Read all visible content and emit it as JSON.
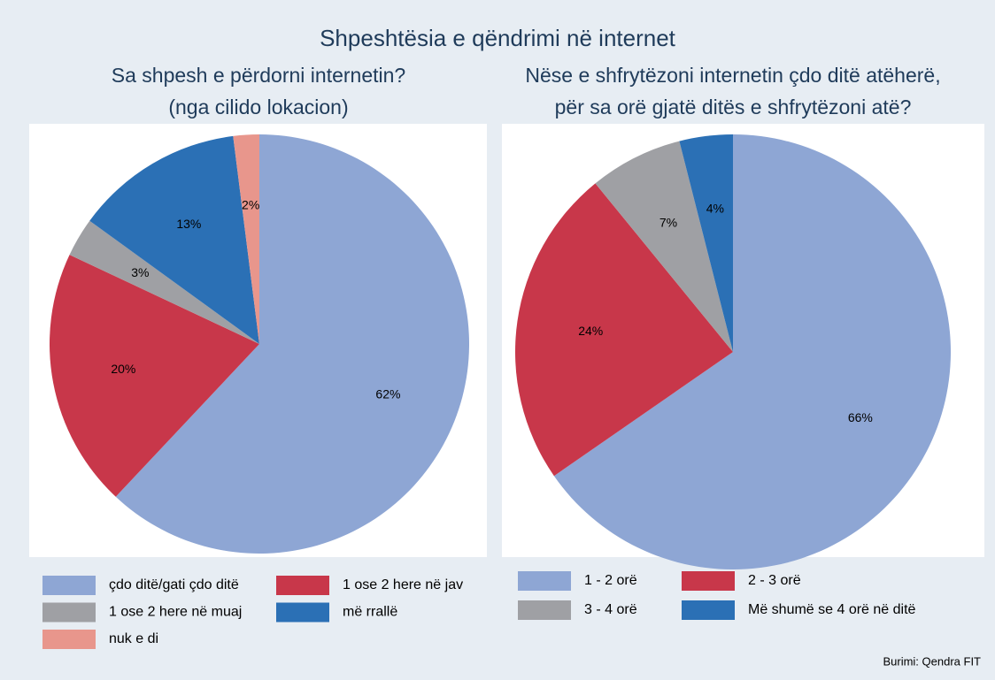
{
  "title": "Shpeshtësia e qëndrimi në internet",
  "source": "Burimi:  Qendra FIT",
  "chart_data": [
    {
      "type": "pie",
      "title": [
        "Sa shpesh e përdorni internetin?",
        "(nga cilido lokacion)"
      ],
      "categories": [
        "çdo ditë/gati çdo ditë",
        "1 ose 2 here në jav",
        "1 ose 2 here në muaj",
        "më rrallë",
        "nuk e di"
      ],
      "values": [
        62,
        20,
        3,
        13,
        2
      ],
      "value_labels": [
        "62%",
        "20%",
        "3%",
        "13%",
        "2%"
      ],
      "colors": [
        "#8ea6d4",
        "#c8374a",
        "#9fa0a4",
        "#2b70b5",
        "#e8968c"
      ]
    },
    {
      "type": "pie",
      "title": [
        "Nëse e shfrytëzoni internetin çdo ditë atëherë,",
        "për sa orë gjatë ditës e shfrytëzoni atë?"
      ],
      "categories": [
        "1 - 2 orë",
        "2 - 3 orë",
        "3 - 4 orë",
        "Më shumë se 4 orë në ditë"
      ],
      "values": [
        66,
        24,
        7,
        4
      ],
      "value_labels": [
        "66%",
        "24%",
        "7%",
        "4%"
      ],
      "colors": [
        "#8ea6d4",
        "#c8374a",
        "#9fa0a4",
        "#2b70b5"
      ]
    }
  ]
}
